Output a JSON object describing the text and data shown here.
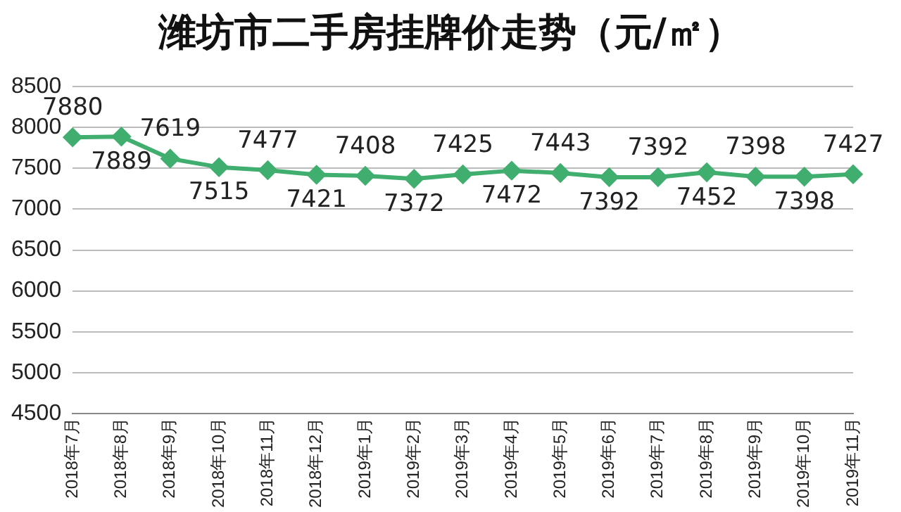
{
  "chart_data": {
    "type": "line",
    "title": "潍坊市二手房挂牌价走势（元/㎡）",
    "categories": [
      "2018年7月",
      "2018年8月",
      "2018年9月",
      "2018年10月",
      "2018年11月",
      "2018年12月",
      "2019年1月",
      "2019年2月",
      "2019年3月",
      "2019年4月",
      "2019年5月",
      "2019年6月",
      "2019年7月",
      "2019年8月",
      "2019年9月",
      "2019年10月",
      "2019年11月"
    ],
    "series": [
      {
        "color": "#3fae6f",
        "values": [
          7880,
          7889,
          7619,
          7515,
          7477,
          7421,
          7408,
          7372,
          7425,
          7472,
          7443,
          7392,
          7392,
          7452,
          7398,
          7398,
          7427
        ]
      }
    ],
    "ylim": [
      4500,
      8500
    ],
    "yticks": [
      4500,
      5000,
      5500,
      6000,
      6500,
      7000,
      7500,
      8000,
      8500
    ],
    "grid": "y",
    "legend": false,
    "marker": "diamond",
    "line_style": "solid",
    "data_labels": true
  }
}
